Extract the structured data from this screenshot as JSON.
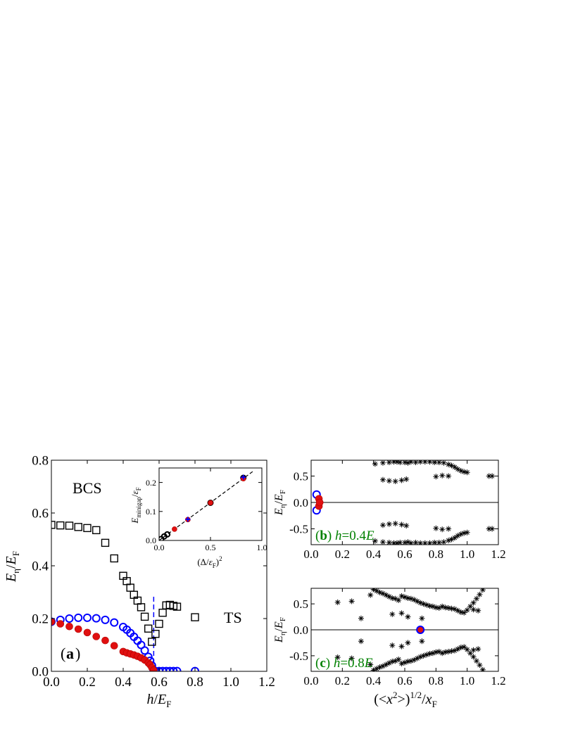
{
  "chart_data": [
    {
      "panel": "a",
      "type": "scatter",
      "tag": {
        "open": "(",
        "letter": "a",
        "close": ")"
      },
      "xlabel": {
        "var": "h",
        "sep": "/",
        "den": "E",
        "den_sub": "F"
      },
      "ylabel": {
        "var": "E",
        "sub": "η",
        "sep": "/",
        "den": "E",
        "den_sub": "F"
      },
      "xlim": [
        0.0,
        1.2
      ],
      "ylim": [
        0.0,
        0.8
      ],
      "xticks": [
        "0.0",
        "0.2",
        "0.4",
        "0.6",
        "0.8",
        "1.0",
        "1.2"
      ],
      "yticks": [
        "0.0",
        "0.2",
        "0.4",
        "0.6",
        "0.8"
      ],
      "annotations": {
        "bcs": "BCS",
        "ts": "TS"
      },
      "critical_line": {
        "x": 0.57,
        "y_range": [
          0.0,
          0.285
        ],
        "color": "#0000ff",
        "style": "dashed"
      },
      "series": [
        {
          "marker": "open-square",
          "color": "#000000",
          "points": [
            [
              0.0,
              0.555
            ],
            [
              0.05,
              0.553
            ],
            [
              0.1,
              0.552
            ],
            [
              0.15,
              0.547
            ],
            [
              0.2,
              0.543
            ],
            [
              0.25,
              0.535
            ],
            [
              0.3,
              0.487
            ],
            [
              0.35,
              0.428
            ],
            [
              0.4,
              0.362
            ],
            [
              0.42,
              0.342
            ],
            [
              0.44,
              0.317
            ],
            [
              0.46,
              0.29
            ],
            [
              0.48,
              0.268
            ],
            [
              0.5,
              0.243
            ],
            [
              0.52,
              0.207
            ],
            [
              0.54,
              0.162
            ],
            [
              0.56,
              0.112
            ],
            [
              0.58,
              0.142
            ],
            [
              0.6,
              0.18
            ],
            [
              0.62,
              0.222
            ],
            [
              0.64,
              0.25
            ],
            [
              0.66,
              0.252
            ],
            [
              0.68,
              0.248
            ],
            [
              0.7,
              0.245
            ],
            [
              0.8,
              0.205
            ]
          ]
        },
        {
          "marker": "open-circle",
          "color": "#0000ff",
          "points": [
            [
              0.0,
              0.188
            ],
            [
              0.05,
              0.195
            ],
            [
              0.1,
              0.2
            ],
            [
              0.15,
              0.203
            ],
            [
              0.2,
              0.203
            ],
            [
              0.25,
              0.201
            ],
            [
              0.3,
              0.195
            ],
            [
              0.35,
              0.185
            ],
            [
              0.4,
              0.168
            ],
            [
              0.42,
              0.158
            ],
            [
              0.44,
              0.145
            ],
            [
              0.46,
              0.131
            ],
            [
              0.48,
              0.116
            ],
            [
              0.5,
              0.1
            ],
            [
              0.52,
              0.079
            ],
            [
              0.54,
              0.055
            ],
            [
              0.55,
              0.04
            ],
            [
              0.56,
              0.022
            ],
            [
              0.57,
              0.004
            ],
            [
              0.58,
              0.001
            ],
            [
              0.6,
              0.001
            ],
            [
              0.62,
              0.001
            ],
            [
              0.64,
              0.001
            ],
            [
              0.66,
              0.001
            ],
            [
              0.68,
              0.001
            ],
            [
              0.7,
              0.001
            ],
            [
              0.8,
              0.001
            ]
          ]
        },
        {
          "marker": "filled-circle",
          "color": "#e01010",
          "points": [
            [
              0.0,
              0.188
            ],
            [
              0.05,
              0.18
            ],
            [
              0.1,
              0.17
            ],
            [
              0.15,
              0.16
            ],
            [
              0.2,
              0.147
            ],
            [
              0.25,
              0.132
            ],
            [
              0.3,
              0.117
            ],
            [
              0.35,
              0.097
            ],
            [
              0.4,
              0.075
            ],
            [
              0.42,
              0.07
            ],
            [
              0.44,
              0.066
            ],
            [
              0.46,
              0.062
            ],
            [
              0.48,
              0.057
            ],
            [
              0.5,
              0.051
            ],
            [
              0.52,
              0.043
            ],
            [
              0.54,
              0.032
            ],
            [
              0.55,
              0.025
            ],
            [
              0.56,
              0.014
            ],
            [
              0.57,
              0.004
            ]
          ]
        }
      ]
    },
    {
      "panel": "a-inset",
      "type": "scatter",
      "xlabel": {
        "open": "(Δ/",
        "den": "ε",
        "den_sub": "F",
        "close": ")",
        "exp": "2"
      },
      "ylabel": {
        "var": "E",
        "sub": "minigap",
        "sep": "/",
        "den": "ε",
        "den_sub": "F"
      },
      "xlim": [
        0.0,
        1.0
      ],
      "ylim": [
        0.0,
        0.25
      ],
      "xticks": [
        "0.0",
        "0.5",
        "1.0"
      ],
      "yticks": [
        "0.0",
        "0.1",
        "0.2"
      ],
      "fit_line": {
        "x": [
          0.0,
          0.92
        ],
        "y": [
          0.0,
          0.24
        ],
        "style": "dashed",
        "color": "#000000"
      },
      "series": [
        {
          "marker": "open-circle",
          "color": "#000000",
          "points": [
            [
              0.02,
              0.005
            ],
            [
              0.05,
              0.014
            ],
            [
              0.08,
              0.021
            ],
            [
              0.82,
              0.216
            ],
            [
              0.5,
              0.13
            ]
          ]
        },
        {
          "marker": "filled-circle",
          "color": "#e01010",
          "points": [
            [
              0.15,
              0.039
            ],
            [
              0.28,
              0.072
            ],
            [
              0.5,
              0.13
            ],
            [
              0.82,
              0.213
            ]
          ]
        },
        {
          "marker": "cross",
          "color": "#0000ff",
          "points": [
            [
              0.28,
              0.073
            ],
            [
              0.82,
              0.218
            ]
          ]
        }
      ]
    },
    {
      "panel": "b",
      "type": "scatter",
      "tag": {
        "open": "(",
        "letter": "b",
        "close": ") ",
        "var": "h",
        "eq": "=0.4",
        "unit": "E"
      },
      "ylabel": {
        "var": "E",
        "sub": "η",
        "sep": "/",
        "den": "E",
        "den_sub": "F"
      },
      "xlim": [
        0.0,
        1.2
      ],
      "ylim": [
        -0.8,
        0.8
      ],
      "xticks": [
        "0.0",
        "0.2",
        "0.4",
        "0.6",
        "0.8",
        "1.0",
        "1.2"
      ],
      "yticks": [
        "-0.5",
        "0.0",
        "0.5"
      ],
      "zero_line": true,
      "series": [
        {
          "marker": "asterisk",
          "color": "#000000",
          "mirror": true,
          "points": [
            [
              0.41,
              0.73
            ],
            [
              0.46,
              0.75
            ],
            [
              0.5,
              0.76
            ],
            [
              0.53,
              0.77
            ],
            [
              0.55,
              0.77
            ],
            [
              0.57,
              0.76
            ],
            [
              0.6,
              0.76
            ],
            [
              0.62,
              0.75
            ],
            [
              0.64,
              0.77
            ],
            [
              0.67,
              0.76
            ],
            [
              0.7,
              0.77
            ],
            [
              0.73,
              0.77
            ],
            [
              0.76,
              0.77
            ],
            [
              0.79,
              0.76
            ],
            [
              0.82,
              0.76
            ],
            [
              0.85,
              0.75
            ],
            [
              0.88,
              0.72
            ],
            [
              0.9,
              0.7
            ],
            [
              0.92,
              0.67
            ],
            [
              0.94,
              0.63
            ],
            [
              0.96,
              0.6
            ],
            [
              0.98,
              0.58
            ],
            [
              1.0,
              0.57
            ],
            [
              0.46,
              0.43
            ],
            [
              0.5,
              0.41
            ],
            [
              0.54,
              0.4
            ],
            [
              0.58,
              0.42
            ],
            [
              0.61,
              0.44
            ],
            [
              0.8,
              0.49
            ],
            [
              0.84,
              0.51
            ],
            [
              0.88,
              0.5
            ],
            [
              1.14,
              0.5
            ],
            [
              1.16,
              0.5
            ]
          ]
        },
        {
          "marker": "open-circle",
          "color": "#0000ff",
          "points": [
            [
              0.035,
              0.15
            ],
            [
              0.035,
              -0.15
            ]
          ]
        },
        {
          "marker": "filled-circle",
          "color": "#e01010",
          "points": [
            [
              0.05,
              0.07
            ],
            [
              0.05,
              -0.07
            ],
            [
              0.055,
              0.0
            ]
          ]
        }
      ]
    },
    {
      "panel": "c",
      "type": "scatter",
      "tag": {
        "open": "(",
        "letter": "c",
        "close": ") ",
        "var": "h",
        "eq": "=0.8",
        "unit": "E"
      },
      "ylabel": {
        "var": "E",
        "sub": "η",
        "sep": "/",
        "den": "E",
        "den_sub": "F"
      },
      "xlabel": {
        "open": "(<",
        "var": "x",
        "sup": "2",
        "close": ">)",
        "exp": "1/2",
        "sep": "/",
        "den": "x",
        "den_sub": "F"
      },
      "xlim": [
        0.0,
        1.2
      ],
      "ylim": [
        -0.8,
        0.8
      ],
      "xticks": [
        "0.0",
        "0.2",
        "0.4",
        "0.6",
        "0.8",
        "1.0",
        "1.2"
      ],
      "yticks": [
        "-0.5",
        "0.0",
        "0.5"
      ],
      "zero_line": true,
      "series": [
        {
          "marker": "asterisk",
          "color": "#000000",
          "mirror": true,
          "points": [
            [
              0.17,
              0.53
            ],
            [
              0.26,
              0.55
            ],
            [
              0.32,
              0.22
            ],
            [
              0.38,
              0.67
            ],
            [
              0.4,
              0.78
            ],
            [
              0.42,
              0.75
            ],
            [
              0.44,
              0.72
            ],
            [
              0.46,
              0.7
            ],
            [
              0.48,
              0.67
            ],
            [
              0.5,
              0.64
            ],
            [
              0.52,
              0.61
            ],
            [
              0.54,
              0.6
            ],
            [
              0.56,
              0.57
            ],
            [
              0.58,
              0.65
            ],
            [
              0.6,
              0.63
            ],
            [
              0.62,
              0.61
            ],
            [
              0.64,
              0.6
            ],
            [
              0.66,
              0.58
            ],
            [
              0.68,
              0.55
            ],
            [
              0.7,
              0.52
            ],
            [
              0.72,
              0.5
            ],
            [
              0.74,
              0.48
            ],
            [
              0.76,
              0.46
            ],
            [
              0.78,
              0.45
            ],
            [
              0.8,
              0.43
            ],
            [
              0.82,
              0.42
            ],
            [
              0.84,
              0.45
            ],
            [
              0.86,
              0.43
            ],
            [
              0.88,
              0.42
            ],
            [
              0.9,
              0.41
            ],
            [
              0.92,
              0.4
            ],
            [
              0.94,
              0.37
            ],
            [
              0.96,
              0.34
            ],
            [
              0.98,
              0.33
            ],
            [
              1.0,
              0.38
            ],
            [
              1.02,
              0.45
            ],
            [
              1.04,
              0.52
            ],
            [
              1.06,
              0.6
            ],
            [
              1.08,
              0.68
            ],
            [
              1.1,
              0.77
            ],
            [
              1.04,
              0.39
            ],
            [
              1.07,
              0.37
            ],
            [
              0.52,
              0.3
            ],
            [
              0.58,
              0.32
            ],
            [
              0.62,
              0.25
            ],
            [
              0.71,
              0.22
            ]
          ]
        },
        {
          "marker": "filled-circle",
          "color": "#e01010",
          "points": [
            [
              0.7,
              0.0
            ]
          ]
        },
        {
          "marker": "open-circle",
          "color": "#0000ff",
          "points": [
            [
              0.7,
              0.0
            ]
          ]
        }
      ]
    }
  ]
}
